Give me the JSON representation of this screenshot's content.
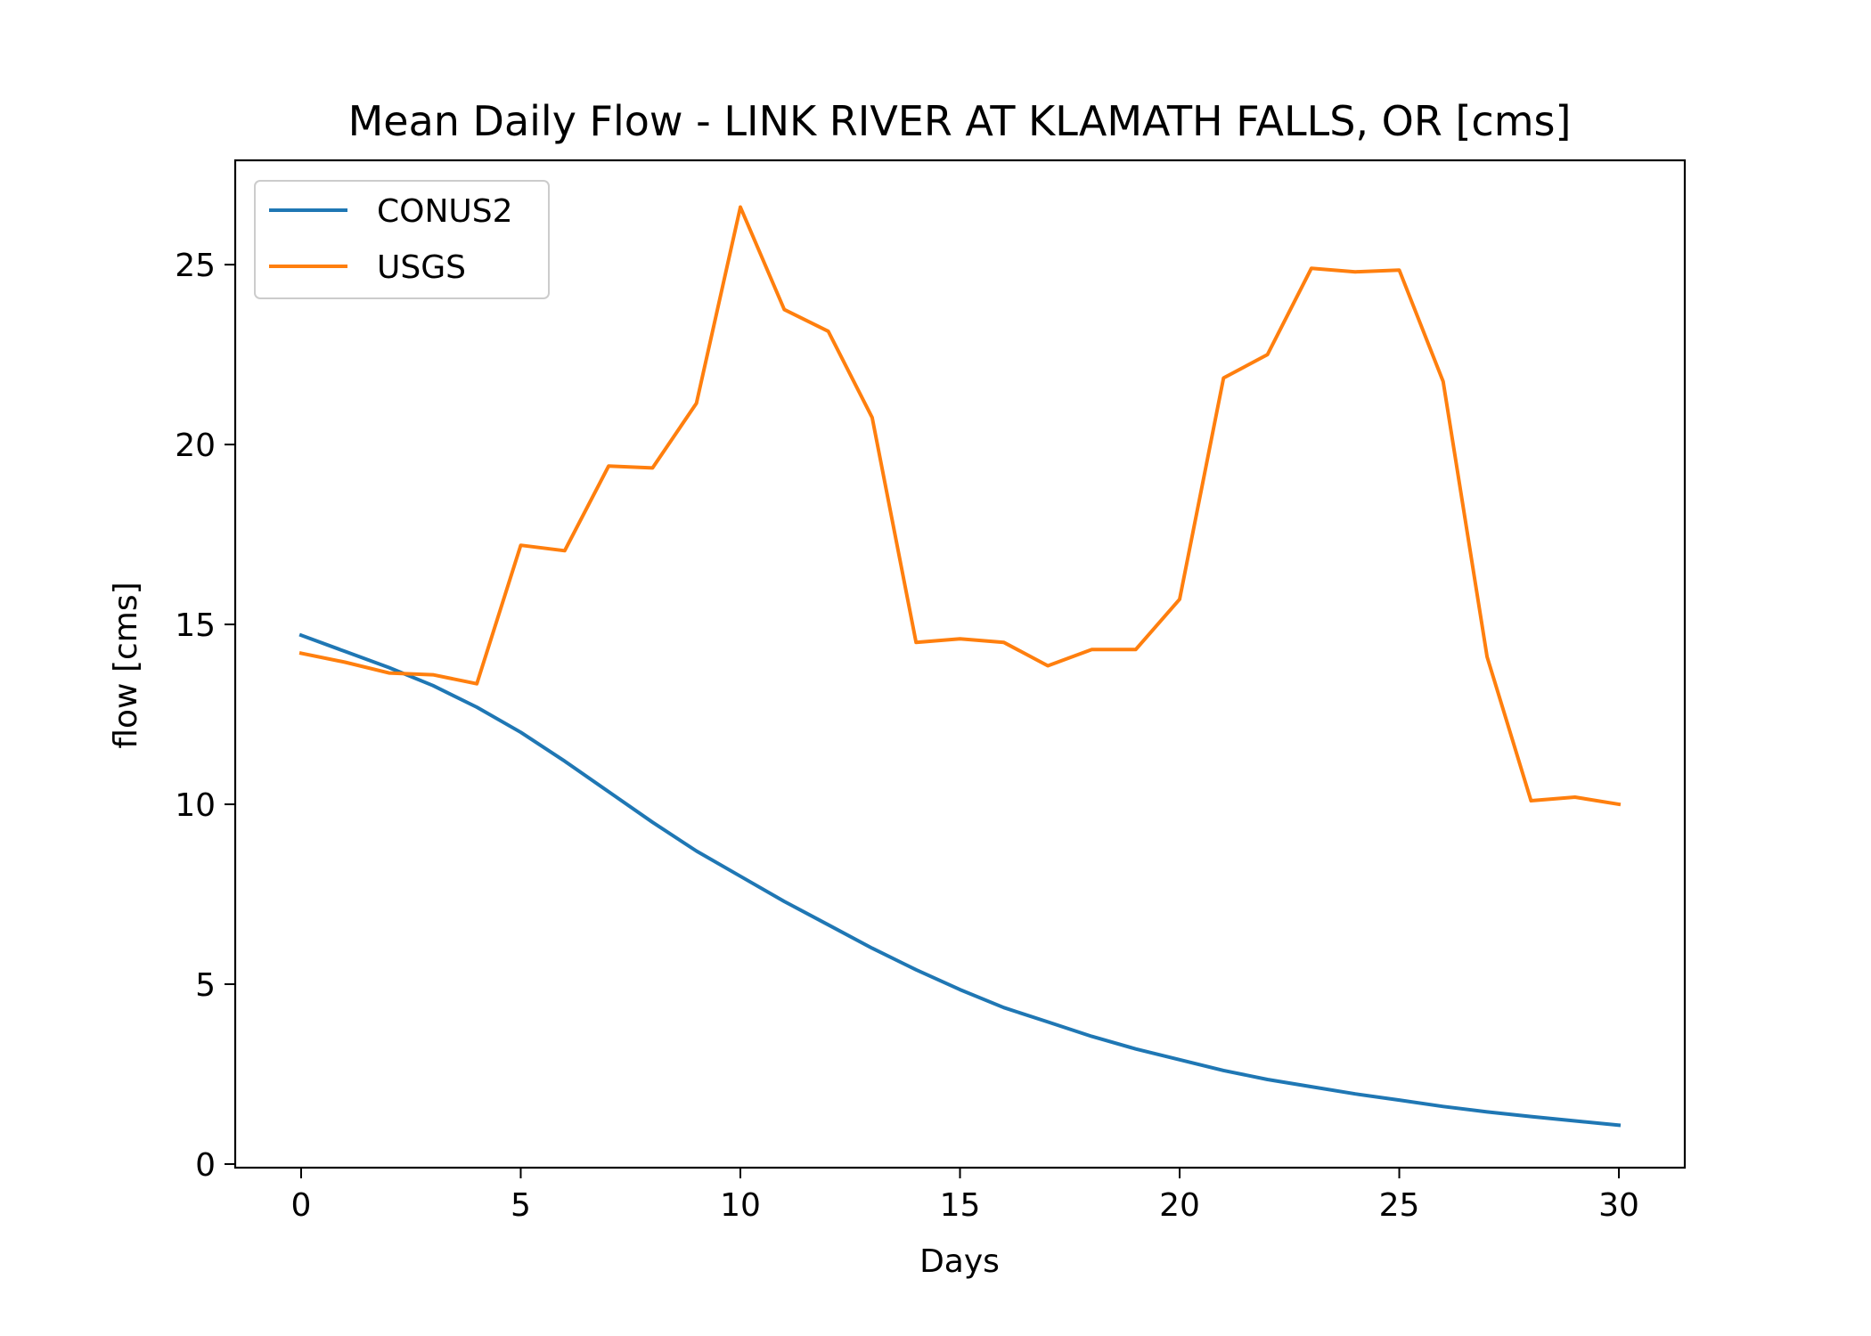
{
  "chart_data": {
    "type": "line",
    "title": "Mean Daily Flow - LINK RIVER AT KLAMATH FALLS, OR [cms]",
    "xlabel": "Days",
    "ylabel": "flow [cms]",
    "xlim": [
      -1.5,
      31.5
    ],
    "ylim": [
      -0.1,
      27.9
    ],
    "xticks": [
      0,
      5,
      10,
      15,
      20,
      25,
      30
    ],
    "xtick_labels": [
      "0",
      "5",
      "10",
      "15",
      "20",
      "25",
      "30"
    ],
    "yticks": [
      0,
      5,
      10,
      15,
      20,
      25
    ],
    "ytick_labels": [
      "0",
      "5",
      "10",
      "15",
      "20",
      "25"
    ],
    "grid": false,
    "legend_position": "top-left",
    "x": [
      0,
      1,
      2,
      3,
      4,
      5,
      6,
      7,
      8,
      9,
      10,
      11,
      12,
      13,
      14,
      15,
      16,
      17,
      18,
      19,
      20,
      21,
      22,
      23,
      24,
      25,
      26,
      27,
      28,
      29,
      30
    ],
    "series": [
      {
        "name": "CONUS2",
        "color": "#1f77b4",
        "values": [
          14.7,
          14.25,
          13.8,
          13.3,
          12.7,
          12.0,
          11.2,
          10.35,
          9.5,
          8.7,
          8.0,
          7.3,
          6.65,
          6.0,
          5.4,
          4.85,
          4.35,
          3.95,
          3.55,
          3.2,
          2.9,
          2.6,
          2.35,
          2.15,
          1.95,
          1.78,
          1.6,
          1.45,
          1.32,
          1.2,
          1.08
        ]
      },
      {
        "name": "USGS",
        "color": "#ff7f0e",
        "values": [
          14.2,
          13.95,
          13.65,
          13.6,
          13.35,
          17.2,
          17.05,
          19.4,
          19.35,
          21.15,
          26.6,
          23.75,
          23.15,
          20.75,
          14.5,
          14.6,
          14.5,
          13.85,
          14.3,
          14.3,
          15.7,
          21.85,
          22.5,
          24.9,
          24.8,
          24.85,
          21.75,
          14.1,
          10.1,
          10.2,
          10.0
        ]
      }
    ]
  }
}
